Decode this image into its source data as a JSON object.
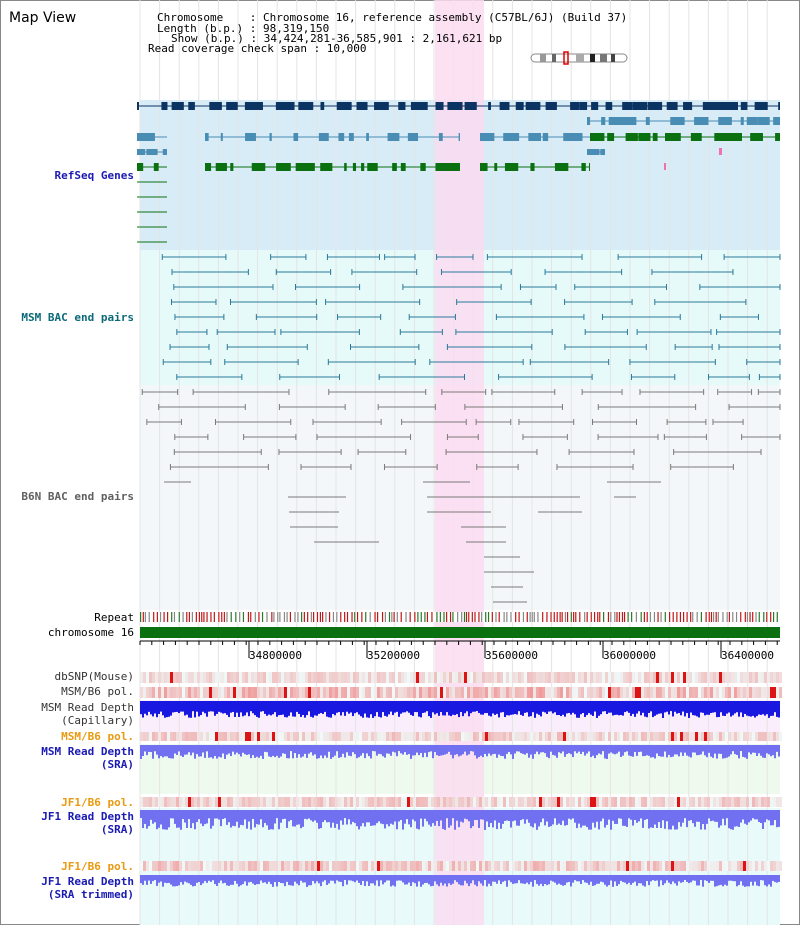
{
  "title": "Map View",
  "header": {
    "chromosome": "Chromosome    : Chromosome 16, reference assembly (C57BL/6J) (Build 37)",
    "length": "Length (b.p.) : 98,319,150",
    "show": "Show (b.p.) : 34,424,281-36,585,901 : 2,161,621 bp",
    "span": "Read coverage check span : 10,000"
  },
  "tracks": {
    "refseq": "RefSeq Genes",
    "msm_bac": "MSM BAC end pairs",
    "b6n_bac": "B6N BAC end pairs",
    "repeat": "Repeat",
    "chromosome": "chromosome 16",
    "dbsnp": "dbSNP(Mouse)",
    "msm_pol": "MSM/B6 pol.",
    "msm_depth_cap_1": "MSM Read Depth",
    "msm_depth_cap_2": "(Capillary)",
    "msm_pol2": "MSM/B6 pol.",
    "msm_depth_sra_1": "MSM Read Depth",
    "msm_depth_sra_2": "(SRA)",
    "jf1_pol": "JF1/B6 pol.",
    "jf1_depth_1": "JF1 Read Depth",
    "jf1_depth_2": "(SRA)",
    "jf1_pol2": "JF1/B6 pol.",
    "jf1_trim_1": "JF1 Read Depth",
    "jf1_trim_2": "(SRA trimmed)"
  },
  "axis": {
    "ticks": [
      "34800000",
      "35200000",
      "35600000",
      "36000000",
      "36400000"
    ]
  },
  "colors": {
    "refseq_bg": "#d8ecf8",
    "msm_bg": "#e6fafa",
    "b6n_bg": "#f4f7fa",
    "highlight": "#fadcf0",
    "gene_navy": "#0c3462",
    "gene_blue": "#4a8db4",
    "gene_green": "#0a7010",
    "msm_line": "#2a7a9a",
    "b6n_line": "#7a7a7a",
    "depth_blue": "#1818e0",
    "depth_light": "#7070f0",
    "pol_red": "#f03838"
  },
  "icons": {
    "ideogram": "chromosome-ideogram-icon"
  }
}
